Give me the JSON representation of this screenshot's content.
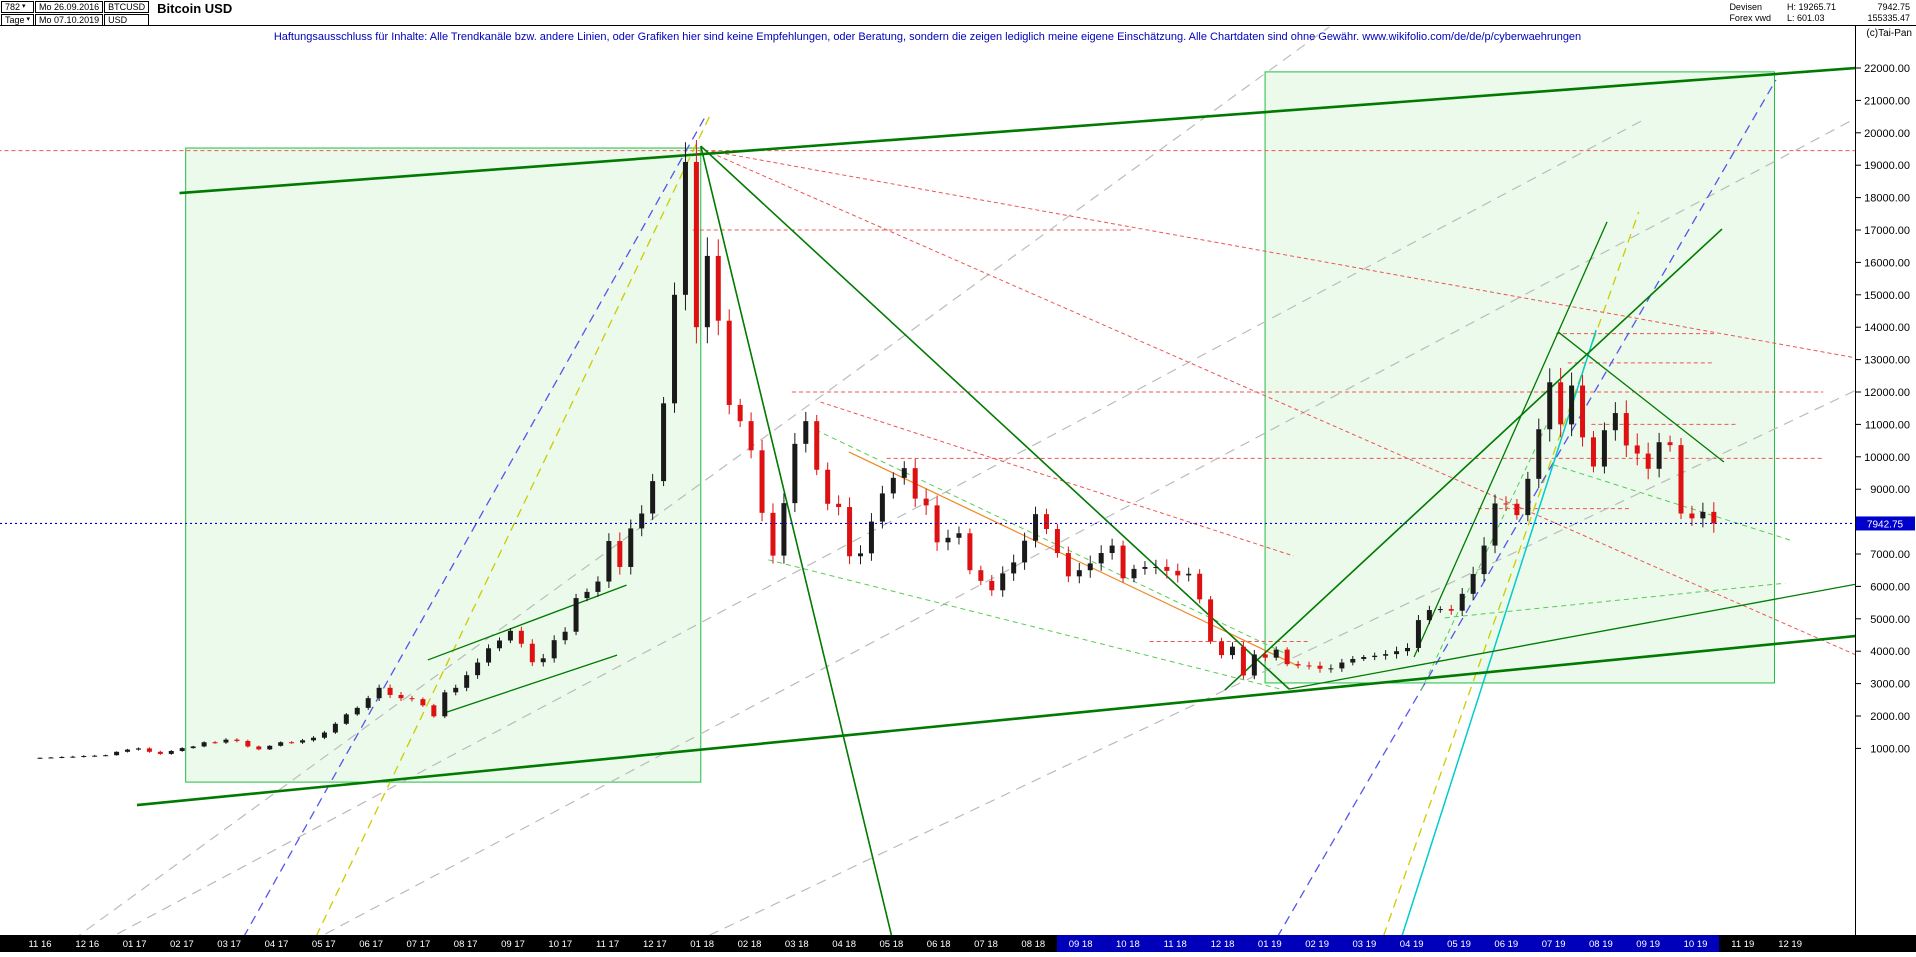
{
  "header": {
    "left": {
      "bars": "782",
      "period": "Tage",
      "date_from": "Mo 26.09.2016",
      "date_to": "Mo 07.10.2019",
      "symbol": "BTCUSD",
      "currency": "USD",
      "title": "Bitcoin USD"
    },
    "right": {
      "market": "Devisen",
      "feed": "Forex vwd",
      "high": "H: 19265.71",
      "low": "L: 601.03",
      "last": "7942.75",
      "turnover": "155335.47",
      "copyright": "(c)Tai-Pan"
    }
  },
  "disclaimer": "Haftungsausschluss für Inhalte: Alle Trendkanäle bzw. andere Linien, oder Grafiken hier sind keine Empfehlungen, oder Beratung, sondern die zeigen lediglich meine eigene Einschätzung. Alle Chartdaten sind ohne Gewähr.  www.wikifolio.com/de/de/p/cyberwaehrungen",
  "chart_data": {
    "type": "candlestick",
    "title": "Bitcoin USD",
    "timeframe": "weekly approximation of 782 daily bars",
    "current_price": 7942.75,
    "y_axis": {
      "max": 22000,
      "min": 1000,
      "step": 1000
    },
    "y_ticks": [
      22000,
      21000,
      20000,
      19000,
      18000,
      17000,
      16000,
      15000,
      14000,
      13000,
      12000,
      11000,
      10000,
      9000,
      8000,
      7000,
      6000,
      5000,
      4000,
      3000,
      2000,
      1000
    ],
    "x_labels": [
      "11 16",
      "12 16",
      "01 17",
      "02 17",
      "03 17",
      "04 17",
      "05 17",
      "06 17",
      "07 17",
      "08 17",
      "09 17",
      "10 17",
      "11 17",
      "12 17",
      "01 18",
      "02 18",
      "03 18",
      "04 18",
      "05 18",
      "06 18",
      "07 18",
      "08 18",
      "09 18",
      "10 18",
      "11 18",
      "12 18",
      "01 19",
      "02 19",
      "03 19",
      "04 19",
      "05 19",
      "06 19",
      "07 19",
      "08 19",
      "09 19",
      "10 19",
      "11 19",
      "12 19"
    ],
    "x_highlight_range": [
      22,
      35
    ],
    "weekly_closes": [
      710,
      720,
      735,
      745,
      765,
      775,
      790,
      895,
      963,
      1000,
      895,
      830,
      920,
      1010,
      1060,
      1190,
      1180,
      1270,
      1230,
      1060,
      970,
      1080,
      1190,
      1180,
      1250,
      1330,
      1490,
      1760,
      2050,
      2250,
      2550,
      2870,
      2650,
      2550,
      2520,
      2330,
      1990,
      2730,
      2870,
      3260,
      3650,
      4090,
      4330,
      4630,
      4230,
      3660,
      3780,
      4340,
      4600,
      5640,
      5830,
      6150,
      7400,
      6600,
      7790,
      8250,
      9250,
      11650,
      15000,
      19100,
      14000,
      16200,
      14200,
      11600,
      11100,
      10200,
      8270,
      6950,
      8570,
      10400,
      11100,
      9600,
      8550,
      8450,
      6930,
      7020,
      8000,
      8870,
      9350,
      9650,
      8710,
      8500,
      7360,
      7500,
      7640,
      6500,
      6170,
      5880,
      6400,
      6740,
      7410,
      8230,
      7770,
      7030,
      6310,
      6500,
      6710,
      7030,
      7260,
      6250,
      6540,
      6600,
      6600,
      6480,
      6340,
      6390,
      5600,
      4300,
      3880,
      4140,
      3250,
      3900,
      3800,
      4050,
      3600,
      3560,
      3550,
      3460,
      3470,
      3650,
      3760,
      3820,
      3860,
      3910,
      4000,
      4100,
      4960,
      5270,
      5300,
      5250,
      5770,
      6380,
      7260,
      8560,
      8550,
      8200,
      9320,
      10850,
      12300,
      11000,
      12200,
      10600,
      9700,
      10820,
      11350,
      10350,
      10100,
      9630,
      10450,
      10360,
      8250,
      8100,
      8300,
      7942.75
    ],
    "colors": {
      "up": "#1a1a1a",
      "down": "#dd1111",
      "current": "#0000cc",
      "box_fill": "#ddf7dd",
      "box_edge": "#22bb44",
      "axis_highlight": "#0000bb",
      "lines": {
        "green": "#007a00",
        "lightgreen": "#55cc55",
        "blue": "#5555ee",
        "yellow": "#cccc00",
        "gray": "#bbbbbb",
        "cyan": "#00cccc",
        "orange": "#ee8822",
        "red": "#ee5555"
      }
    },
    "overlays": {
      "boxes": [
        {
          "m1": 3.08,
          "m2": 13.97,
          "p1": 19530,
          "p2": -40
        },
        {
          "m1": 25.9,
          "m2": 36.67,
          "p1": 21880,
          "p2": 3020
        }
      ],
      "h_levels": [
        {
          "p": 19450,
          "m1": -0.9,
          "m2": 38.4,
          "c": "red"
        },
        {
          "p": 17000,
          "m1": 13.8,
          "m2": 23.1,
          "c": "red"
        },
        {
          "p": 12000,
          "m1": 15.9,
          "m2": 37.7,
          "c": "red"
        },
        {
          "p": 9950,
          "m1": 17.9,
          "m2": 37.7,
          "c": "red"
        },
        {
          "p": 13800,
          "m1": 32.05,
          "m2": 35.4,
          "c": "red"
        },
        {
          "p": 12900,
          "m1": 32.3,
          "m2": 35.4,
          "c": "red"
        },
        {
          "p": 11000,
          "m1": 32.8,
          "m2": 35.9,
          "c": "red"
        },
        {
          "p": 8400,
          "m1": 30.4,
          "m2": 33.6,
          "c": "red"
        },
        {
          "p": 4300,
          "m1": 23.46,
          "m2": 26.8,
          "c": "red"
        }
      ],
      "segments": [
        {
          "m1": 5.4,
          "p1": -5220,
          "m2": 38.4,
          "p2": 20460,
          "c": "gray",
          "dash": "10,7",
          "w": 1.2
        },
        {
          "m1": 1.0,
          "p1": -5220,
          "m2": 33.9,
          "p2": 20400,
          "c": "gray",
          "dash": "10,7",
          "w": 1.2
        },
        {
          "m1": 13.5,
          "p1": -5220,
          "m2": 38.4,
          "p2": 12060,
          "c": "gray",
          "dash": "10,7",
          "w": 1.2
        },
        {
          "m1": 0.4,
          "p1": -5220,
          "m2": 27.4,
          "p2": 23420,
          "c": "gray",
          "dash": "10,7",
          "w": 1.2
        },
        {
          "m1": 5.7,
          "p1": -5220,
          "m2": 14.2,
          "p2": 20640,
          "c": "yellow",
          "dash": "9,6",
          "w": 1.3
        },
        {
          "m1": 28.3,
          "p1": -5220,
          "m2": 33.8,
          "p2": 17560,
          "c": "yellow",
          "dash": "9,6",
          "w": 1.3
        },
        {
          "m1": 4.15,
          "p1": -5220,
          "m2": 14.05,
          "p2": 20460,
          "c": "blue",
          "dash": "9,6",
          "w": 1.3
        },
        {
          "m1": 26.0,
          "p1": -5220,
          "m2": 36.7,
          "p2": 21630,
          "c": "blue",
          "dash": "9,6",
          "w": 1.3
        },
        {
          "m1": 28.7,
          "p1": -5220,
          "m2": 32.9,
          "p2": 13910,
          "c": "cyan",
          "w": 1.5
        },
        {
          "m1": 17.1,
          "p1": 10150,
          "m2": 26.6,
          "p2": 3540,
          "c": "orange",
          "w": 1.2
        },
        {
          "m1": 16.4,
          "p1": 10830,
          "m2": 26.4,
          "p2": 3880,
          "c": "lightgreen",
          "dash": "5,4",
          "w": 1
        },
        {
          "m1": 15.4,
          "p1": 6820,
          "m2": 26.2,
          "p2": 2840,
          "c": "lightgreen",
          "dash": "5,4",
          "w": 1
        },
        {
          "m1": 32.0,
          "p1": 9750,
          "m2": 37.0,
          "p2": 7430,
          "c": "lightgreen",
          "dash": "5,4",
          "w": 1
        },
        {
          "m1": 29.7,
          "p1": 5030,
          "m2": 36.9,
          "p2": 6100,
          "c": "lightgreen",
          "dash": "5,4",
          "w": 1
        },
        {
          "m1": 29.2,
          "p1": 2800,
          "m2": 31.9,
          "p2": 11140,
          "c": "lightgreen",
          "dash": "5,4",
          "w": 1
        },
        {
          "m1": 14.05,
          "p1": 19470,
          "m2": 38.4,
          "p2": 3880,
          "c": "red",
          "dash": "4,3",
          "w": 1
        },
        {
          "m1": 14.05,
          "p1": 19470,
          "m2": 38.4,
          "p2": 13050,
          "c": "red",
          "dash": "4,3",
          "w": 1
        },
        {
          "m1": 16.5,
          "p1": 11690,
          "m2": 26.5,
          "p2": 6940,
          "c": "red",
          "dash": "4,3",
          "w": 1
        },
        {
          "m1": 2.95,
          "p1": 18140,
          "m2": 38.4,
          "p2": 22000,
          "c": "green",
          "w": 2.6
        },
        {
          "m1": 2.05,
          "p1": -750,
          "m2": 38.4,
          "p2": 4470,
          "c": "green",
          "w": 2.6
        },
        {
          "m1": 13.97,
          "p1": 19590,
          "m2": 26.41,
          "p2": 2830,
          "c": "green",
          "w": 1.6
        },
        {
          "m1": 13.97,
          "p1": 19590,
          "m2": 18.0,
          "p2": -4760,
          "c": "green",
          "w": 1.6
        },
        {
          "m1": 25.05,
          "p1": 2800,
          "m2": 35.56,
          "p2": 17030,
          "c": "green",
          "w": 1.6
        },
        {
          "m1": 29.05,
          "p1": 3820,
          "m2": 33.13,
          "p2": 17250,
          "c": "green",
          "w": 1.3
        },
        {
          "m1": 8.2,
          "p1": 3730,
          "m2": 12.4,
          "p2": 6040,
          "c": "green",
          "w": 1.3
        },
        {
          "m1": 8.6,
          "p1": 2120,
          "m2": 12.2,
          "p2": 3880,
          "c": "green",
          "w": 1.3
        },
        {
          "m1": 26.4,
          "p1": 2830,
          "m2": 38.4,
          "p2": 6070,
          "c": "green",
          "w": 1.3
        },
        {
          "m1": 32.1,
          "p1": 13850,
          "m2": 35.6,
          "p2": 9840,
          "c": "green",
          "w": 1.3
        }
      ]
    }
  }
}
